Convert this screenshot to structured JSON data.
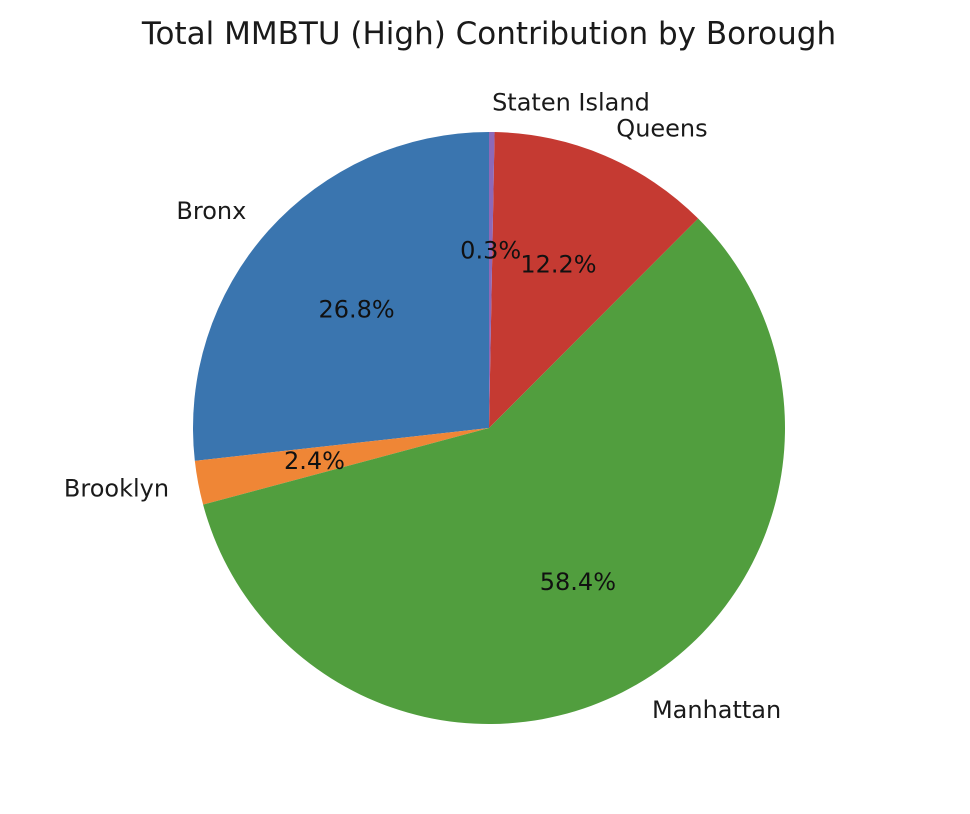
{
  "chart_data": {
    "type": "pie",
    "title": "Total MMBTU (High) Contribution by Borough",
    "start_angle_deg": 90,
    "direction": "counterclockwise",
    "slices": [
      {
        "label": "Bronx",
        "value": 26.8,
        "pct_label": "26.8%",
        "color": "#3a75af"
      },
      {
        "label": "Brooklyn",
        "value": 2.4,
        "pct_label": "2.4%",
        "color": "#ef8636"
      },
      {
        "label": "Manhattan",
        "value": 58.4,
        "pct_label": "58.4%",
        "color": "#519e3e"
      },
      {
        "label": "Queens",
        "value": 12.2,
        "pct_label": "12.2%",
        "color": "#c53a32"
      },
      {
        "label": "Staten Island",
        "value": 0.3,
        "pct_label": "0.3%",
        "color": "#8d69b8"
      }
    ],
    "legend": "none"
  }
}
